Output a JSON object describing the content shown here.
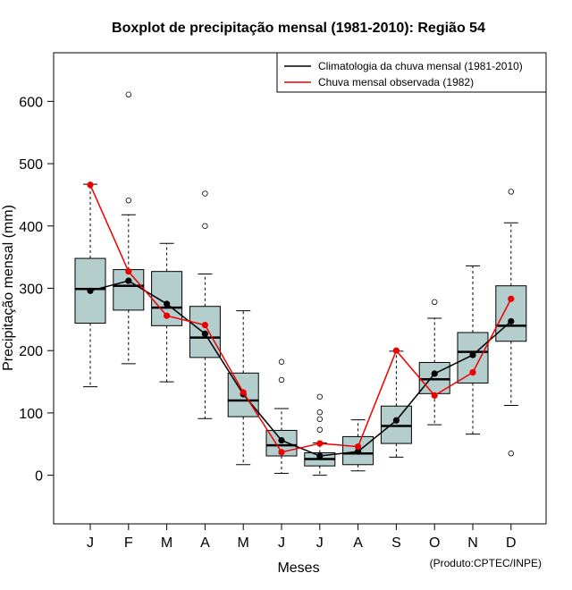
{
  "chart_data": {
    "type": "boxplot",
    "title": "Boxplot de precipitação mensal (1981-2010): Região 54",
    "xlabel": "Meses",
    "ylabel": "Precipitação mensal (mm)",
    "ylim": [
      -78,
      678
    ],
    "yticks": [
      0,
      100,
      200,
      300,
      400,
      500,
      600
    ],
    "categories": [
      "J",
      "F",
      "M",
      "A",
      "M",
      "J",
      "J",
      "A",
      "S",
      "O",
      "N",
      "D"
    ],
    "boxes": [
      {
        "whisker_low": 142,
        "q1": 244,
        "median": 299,
        "q3": 348,
        "whisker_high": 467,
        "outliers": []
      },
      {
        "whisker_low": 179,
        "q1": 265,
        "median": 304,
        "q3": 330,
        "whisker_high": 418,
        "outliers": [
          441,
          611
        ]
      },
      {
        "whisker_low": 150,
        "q1": 240,
        "median": 269,
        "q3": 327,
        "whisker_high": 372,
        "outliers": []
      },
      {
        "whisker_low": 91,
        "q1": 189,
        "median": 221,
        "q3": 271,
        "whisker_high": 323,
        "outliers": [
          400,
          452
        ]
      },
      {
        "whisker_low": 17,
        "q1": 94,
        "median": 120,
        "q3": 164,
        "whisker_high": 264,
        "outliers": []
      },
      {
        "whisker_low": 3,
        "q1": 31,
        "median": 48,
        "q3": 72,
        "whisker_high": 107,
        "outliers": [
          153,
          182
        ]
      },
      {
        "whisker_low": 0,
        "q1": 15,
        "median": 26,
        "q3": 36,
        "whisker_high": 52,
        "outliers": [
          73,
          90,
          101,
          126
        ]
      },
      {
        "whisker_low": 7,
        "q1": 17,
        "median": 35,
        "q3": 62,
        "whisker_high": 89,
        "outliers": []
      },
      {
        "whisker_low": 29,
        "q1": 51,
        "median": 79,
        "q3": 111,
        "whisker_high": 199,
        "outliers": []
      },
      {
        "whisker_low": 81,
        "q1": 131,
        "median": 154,
        "q3": 181,
        "whisker_high": 252,
        "outliers": [
          278
        ]
      },
      {
        "whisker_low": 66,
        "q1": 148,
        "median": 198,
        "q3": 229,
        "whisker_high": 336,
        "outliers": []
      },
      {
        "whisker_low": 112,
        "q1": 215,
        "median": 240,
        "q3": 304,
        "whisker_high": 405,
        "outliers": [
          35,
          455
        ]
      }
    ],
    "series": [
      {
        "name": "Climatologia da chuva mensal (1981-2010)",
        "color": "#000000",
        "values": [
          296,
          312,
          275,
          227,
          130,
          56,
          31,
          38,
          88,
          163,
          193,
          247
        ]
      },
      {
        "name": "Chuva mensal observada (1982)",
        "color": "#ee0000",
        "values": [
          466,
          327,
          256,
          241,
          133,
          37,
          51,
          46,
          200,
          128,
          165,
          283
        ]
      }
    ],
    "box_fill": "#b4cdcd",
    "legend_position": "top-right",
    "credit": "(Produto:CPTEC/INPE)"
  }
}
